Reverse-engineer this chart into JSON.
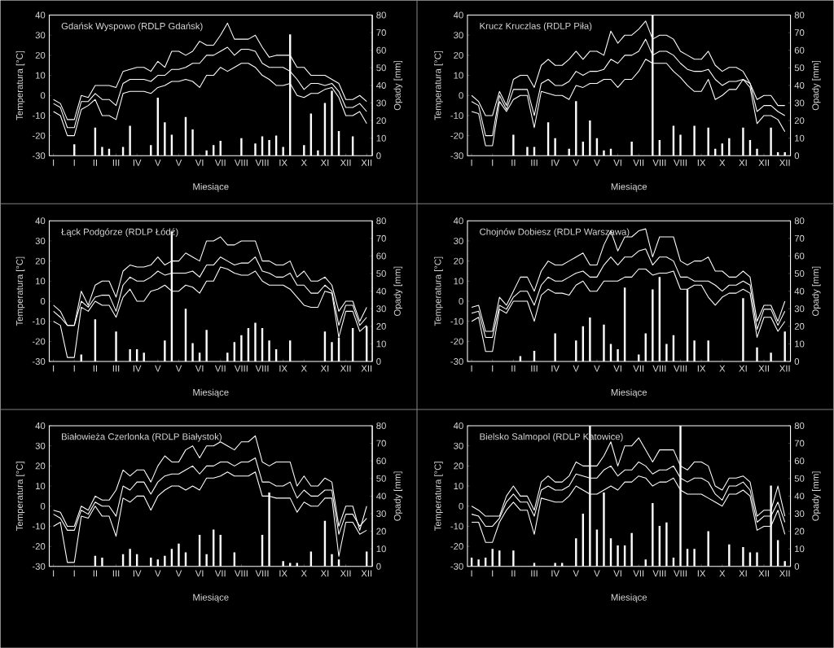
{
  "chart_data": [
    {
      "type": "line",
      "title": "Gdańsk Wyspowo (RDLP Gdańsk)",
      "xlabel": "Miesiące",
      "ylabel": "Temperatura [°C]",
      "y2label": "Opady [mm]",
      "categories": [
        "I",
        null,
        null,
        "I",
        null,
        null,
        "II",
        null,
        null,
        "III",
        null,
        null,
        "IV",
        null,
        null,
        "V",
        null,
        null,
        "V",
        null,
        null,
        "VI",
        null,
        null,
        "VII",
        null,
        null,
        "VIII",
        null,
        null,
        "VIII",
        null,
        null,
        "IX",
        null,
        null,
        "X",
        null,
        null,
        "XI",
        null,
        null,
        "XII",
        null,
        null,
        "XII"
      ],
      "ylim": [
        -30,
        40
      ],
      "yticks": [
        -30,
        -20,
        -10,
        0,
        10,
        20,
        30,
        40
      ],
      "y2lim": [
        0,
        80
      ],
      "y2ticks": [
        0,
        10,
        20,
        30,
        40,
        50,
        60,
        70,
        80
      ],
      "series": [
        {
          "color": "#ffffff",
          "values": [
            -2,
            -4,
            -12,
            -12,
            0,
            -1,
            5,
            5,
            5,
            4,
            12,
            13,
            14,
            14,
            12,
            17,
            14,
            22,
            22,
            20,
            22,
            27,
            25,
            25,
            30,
            36,
            28,
            28,
            28,
            30,
            24,
            19,
            20,
            20,
            20,
            14,
            14,
            10,
            10,
            10,
            8,
            6,
            -2,
            -2,
            0,
            -3
          ]
        },
        {
          "color": "#ffffff",
          "values": [
            -4,
            -6,
            -16,
            -16,
            -3,
            -3,
            1,
            -2,
            -2,
            -5,
            6,
            8,
            8,
            8,
            7,
            10,
            10,
            13,
            13,
            14,
            16,
            16,
            20,
            20,
            22,
            24,
            20,
            23,
            23,
            22,
            16,
            14,
            14,
            14,
            12,
            8,
            3,
            6,
            6,
            5,
            6,
            2,
            -6,
            -6,
            -4,
            -8
          ]
        },
        {
          "color": "#ffffff",
          "values": [
            -8,
            -10,
            -20,
            -20,
            -7,
            -5,
            -2,
            -10,
            -10,
            -12,
            1,
            2,
            2,
            2,
            1,
            4,
            5,
            7,
            7,
            8,
            7,
            4,
            10,
            10,
            14,
            12,
            14,
            16,
            16,
            14,
            10,
            8,
            5,
            5,
            6,
            0,
            -1,
            1,
            1,
            3,
            4,
            -1,
            -10,
            -10,
            -8,
            -14
          ]
        },
        {
          "type": "bar",
          "axis": "y2",
          "color": "#ffffff",
          "values": [
            0,
            0,
            0,
            6.5,
            0,
            0,
            16,
            5,
            4,
            0,
            5,
            17,
            0,
            0,
            6,
            33,
            19,
            12,
            0,
            22,
            15,
            0,
            3,
            6,
            8.5,
            0,
            0,
            10,
            0,
            7,
            11,
            9,
            11.5,
            5,
            69,
            0,
            6,
            24,
            3,
            30,
            37,
            14,
            0,
            11,
            0,
            0
          ]
        }
      ]
    },
    {
      "type": "line",
      "title": "Krucz Kruczlas (RDLP Piła)",
      "xlabel": "Miesiące",
      "ylabel": "Temperatura [°C]",
      "y2label": "Opady [mm]",
      "categories": [
        "I",
        null,
        null,
        "I",
        null,
        null,
        "II",
        null,
        null,
        "III",
        null,
        null,
        "IV",
        null,
        null,
        "V",
        null,
        null,
        "V",
        null,
        null,
        "VI",
        null,
        null,
        "VII",
        null,
        null,
        "VIII",
        null,
        null,
        "VIII",
        null,
        null,
        "IX",
        null,
        null,
        "X",
        null,
        null,
        "XI",
        null,
        null,
        "XII",
        null,
        null,
        "XII"
      ],
      "ylim": [
        -30,
        40
      ],
      "yticks": [
        -30,
        -20,
        -10,
        0,
        10,
        20,
        30,
        40
      ],
      "y2lim": [
        0,
        80
      ],
      "y2ticks": [
        0,
        10,
        20,
        30,
        40,
        50,
        60,
        70,
        80
      ],
      "series": [
        {
          "color": "#ffffff",
          "values": [
            0,
            -3,
            -10,
            -10,
            2,
            -5,
            8,
            10,
            10,
            4,
            15,
            18,
            15,
            15,
            18,
            22,
            18,
            22,
            22,
            20,
            32,
            26,
            30,
            30,
            33,
            37,
            28,
            30,
            30,
            28,
            22,
            20,
            18,
            18,
            22,
            15,
            12,
            14,
            14,
            12,
            6,
            -2,
            0,
            0,
            -5,
            -5
          ]
        },
        {
          "color": "#ffffff",
          "values": [
            -3,
            -5,
            -20,
            -20,
            0,
            -7,
            3,
            3,
            3,
            -10,
            6,
            8,
            5,
            5,
            7,
            12,
            10,
            12,
            12,
            13,
            18,
            16,
            20,
            20,
            22,
            28,
            20,
            22,
            22,
            20,
            16,
            13,
            12,
            12,
            13,
            8,
            5,
            7,
            7,
            8,
            6,
            -8,
            -5,
            -5,
            -8,
            -10
          ]
        },
        {
          "color": "#ffffff",
          "values": [
            -8,
            -9,
            -25,
            -25,
            -3,
            -8,
            -2,
            0,
            0,
            -16,
            2,
            1,
            0,
            0,
            -2,
            5,
            4,
            6,
            6,
            8,
            8,
            4,
            8,
            8,
            12,
            18,
            16,
            16,
            16,
            12,
            9,
            5,
            2,
            2,
            8,
            -2,
            0,
            3,
            3,
            8,
            4,
            -14,
            -10,
            -10,
            -12,
            -18
          ]
        },
        {
          "type": "bar",
          "axis": "y2",
          "color": "#ffffff",
          "values": [
            0,
            0,
            0,
            0,
            0,
            0,
            12,
            0,
            5,
            5,
            0,
            19,
            10,
            0,
            4,
            31,
            8,
            20,
            10,
            3,
            4,
            0,
            0,
            8,
            0,
            0,
            80,
            9,
            0,
            17,
            12,
            0,
            17,
            0,
            16,
            4,
            7,
            10,
            0,
            16,
            9,
            4,
            0,
            16,
            2,
            2
          ]
        }
      ]
    },
    {
      "type": "line",
      "title": "Łąck Podgórze (RDLP Łódź)",
      "xlabel": "Miesiące",
      "ylabel": "Temperatura [°C]",
      "y2label": "Opady [mm]",
      "categories": [
        "I",
        null,
        null,
        "I",
        null,
        null,
        "II",
        null,
        null,
        "III",
        null,
        null,
        "IV",
        null,
        null,
        "V",
        null,
        null,
        "V",
        null,
        null,
        "VI",
        null,
        null,
        "VII",
        null,
        null,
        "VIII",
        null,
        null,
        "VIII",
        null,
        null,
        "IX",
        null,
        null,
        "X",
        null,
        null,
        "XI",
        null,
        null,
        "XII",
        null,
        null,
        "XII"
      ],
      "ylim": [
        -30,
        40
      ],
      "yticks": [
        -30,
        -20,
        -10,
        0,
        10,
        20,
        30,
        40
      ],
      "y2lim": [
        0,
        80
      ],
      "y2ticks": [
        0,
        10,
        20,
        30,
        40,
        50,
        60,
        70,
        80
      ],
      "series": [
        {
          "color": "#ffffff",
          "values": [
            -2,
            -5,
            -12,
            -12,
            5,
            -2,
            8,
            10,
            10,
            2,
            15,
            18,
            17,
            17,
            18,
            22,
            18,
            20,
            20,
            24,
            22,
            20,
            30,
            30,
            32,
            28,
            28,
            30,
            30,
            30,
            20,
            20,
            18,
            18,
            20,
            12,
            15,
            10,
            10,
            12,
            8,
            -5,
            0,
            0,
            -10,
            -3
          ]
        },
        {
          "color": "#ffffff",
          "values": [
            -5,
            -8,
            -12,
            -12,
            0,
            -3,
            2,
            3,
            3,
            -5,
            8,
            12,
            10,
            10,
            12,
            15,
            13,
            14,
            14,
            14,
            15,
            12,
            18,
            18,
            22,
            20,
            18,
            19,
            19,
            22,
            15,
            14,
            12,
            12,
            14,
            8,
            8,
            4,
            4,
            8,
            5,
            -12,
            -2,
            -2,
            -12,
            -8
          ]
        },
        {
          "color": "#ffffff",
          "values": [
            -10,
            -12,
            -28,
            -28,
            -3,
            -5,
            0,
            -2,
            -2,
            -8,
            2,
            6,
            0,
            0,
            5,
            6,
            8,
            5,
            5,
            8,
            7,
            4,
            10,
            10,
            17,
            16,
            14,
            13,
            13,
            15,
            10,
            8,
            8,
            8,
            6,
            2,
            -2,
            -3,
            -3,
            5,
            4,
            -18,
            -5,
            -5,
            -15,
            -12
          ]
        },
        {
          "type": "bar",
          "axis": "y2",
          "color": "#ffffff",
          "values": [
            0,
            0,
            0,
            0,
            4,
            0,
            24,
            0,
            0,
            17,
            0,
            7,
            7,
            5,
            0,
            0,
            12,
            74,
            0,
            30,
            10.5,
            5,
            18,
            0,
            0,
            5,
            11,
            15,
            19,
            22,
            19,
            12,
            7,
            0,
            12,
            0,
            0,
            0,
            0,
            17,
            11,
            13.5,
            0,
            19,
            0,
            20
          ]
        }
      ]
    },
    {
      "type": "line",
      "title": "Chojnów Dobiesz (RDLP Warszawa)",
      "xlabel": "Miesiące",
      "ylabel": "Temperatura [°C]",
      "y2label": "Opady [mm]",
      "categories": [
        "I",
        null,
        null,
        "I",
        null,
        null,
        "II",
        null,
        null,
        "III",
        null,
        null,
        "IV",
        null,
        null,
        "V",
        null,
        null,
        "V",
        null,
        null,
        "VI",
        null,
        null,
        "VII",
        null,
        null,
        "VIII",
        null,
        null,
        "VIII",
        null,
        null,
        "IX",
        null,
        null,
        "X",
        null,
        null,
        "XI",
        null,
        null,
        "XII",
        null,
        null,
        "XII"
      ],
      "ylim": [
        -30,
        40
      ],
      "yticks": [
        -30,
        -20,
        -10,
        0,
        10,
        20,
        30,
        40
      ],
      "y2lim": [
        0,
        80
      ],
      "y2ticks": [
        0,
        10,
        20,
        30,
        40,
        50,
        60,
        70,
        80
      ],
      "series": [
        {
          "color": "#ffffff",
          "values": [
            -3,
            -2,
            -15,
            -15,
            2,
            -2,
            5,
            12,
            12,
            5,
            15,
            20,
            18,
            18,
            20,
            22,
            24,
            18,
            18,
            28,
            35,
            25,
            32,
            32,
            35,
            36,
            22,
            32,
            32,
            32,
            20,
            18,
            20,
            20,
            22,
            15,
            15,
            12,
            12,
            15,
            12,
            -10,
            -2,
            -2,
            -10,
            0
          ]
        },
        {
          "color": "#ffffff",
          "values": [
            -6,
            -5,
            -18,
            -18,
            -2,
            -4,
            2,
            5,
            5,
            -2,
            8,
            12,
            10,
            10,
            12,
            14,
            15,
            12,
            12,
            18,
            22,
            18,
            22,
            22,
            25,
            26,
            18,
            22,
            22,
            20,
            12,
            12,
            10,
            10,
            10,
            8,
            5,
            8,
            8,
            10,
            8,
            -14,
            -4,
            -4,
            -12,
            -5
          ]
        },
        {
          "color": "#ffffff",
          "values": [
            -10,
            -8,
            -25,
            -25,
            -4,
            -6,
            0,
            0,
            0,
            -10,
            3,
            6,
            4,
            4,
            3,
            8,
            10,
            5,
            5,
            10,
            10,
            10,
            12,
            12,
            16,
            16,
            13,
            14,
            14,
            15,
            6,
            6,
            8,
            8,
            2,
            -2,
            2,
            4,
            4,
            6,
            4,
            -18,
            -8,
            -8,
            -15,
            -10
          ]
        },
        {
          "type": "bar",
          "axis": "y2",
          "color": "#ffffff",
          "values": [
            0,
            0,
            0,
            0,
            0,
            0,
            0,
            3,
            0,
            6,
            0,
            0,
            16,
            0,
            0,
            12,
            20,
            25,
            0,
            21,
            10,
            7,
            42,
            0,
            4,
            16,
            41,
            48,
            10,
            15,
            0,
            41,
            12,
            0,
            12,
            0,
            0,
            0,
            0,
            36,
            0,
            8,
            0,
            5,
            0,
            17
          ]
        }
      ]
    },
    {
      "type": "line",
      "title": "Białowieża Czerlonka (RDLP Białystok)",
      "xlabel": "Miesiące",
      "ylabel": "Temperatura [°C]",
      "y2label": "Opady [mm]",
      "categories": [
        "I",
        null,
        null,
        "I",
        null,
        null,
        "II",
        null,
        null,
        "III",
        null,
        null,
        "IV",
        null,
        null,
        "V",
        null,
        null,
        "V",
        null,
        null,
        "VI",
        null,
        null,
        "VII",
        null,
        null,
        "VIII",
        null,
        null,
        "VIII",
        null,
        null,
        "IX",
        null,
        null,
        "X",
        null,
        null,
        "XI",
        null,
        null,
        "XII",
        null,
        null,
        "XII"
      ],
      "ylim": [
        -30,
        40
      ],
      "yticks": [
        -30,
        -20,
        -10,
        0,
        10,
        20,
        30,
        40
      ],
      "y2lim": [
        0,
        80
      ],
      "y2ticks": [
        0,
        10,
        20,
        30,
        40,
        50,
        60,
        70,
        80
      ],
      "series": [
        {
          "color": "#ffffff",
          "values": [
            -2,
            -3,
            -10,
            -10,
            0,
            -2,
            5,
            3,
            3,
            8,
            18,
            15,
            18,
            18,
            12,
            20,
            25,
            22,
            22,
            28,
            30,
            24,
            30,
            30,
            32,
            30,
            28,
            32,
            32,
            35,
            22,
            20,
            22,
            22,
            22,
            10,
            15,
            10,
            10,
            14,
            12,
            -10,
            0,
            0,
            -12,
            0
          ]
        },
        {
          "color": "#ffffff",
          "values": [
            -4,
            -6,
            -12,
            -12,
            -2,
            -4,
            2,
            0,
            0,
            -5,
            10,
            8,
            12,
            12,
            6,
            12,
            15,
            16,
            16,
            18,
            20,
            16,
            20,
            20,
            22,
            22,
            20,
            22,
            22,
            24,
            12,
            12,
            10,
            10,
            12,
            4,
            8,
            5,
            5,
            8,
            8,
            -14,
            -4,
            -4,
            -10,
            -6
          ]
        },
        {
          "color": "#ffffff",
          "values": [
            -10,
            -8,
            -28,
            -28,
            -5,
            -6,
            0,
            -5,
            -5,
            -15,
            4,
            2,
            5,
            5,
            -2,
            5,
            8,
            10,
            10,
            8,
            10,
            8,
            14,
            14,
            15,
            17,
            15,
            15,
            15,
            17,
            5,
            5,
            4,
            4,
            4,
            -3,
            2,
            0,
            0,
            4,
            4,
            -25,
            -8,
            -8,
            -14,
            -12
          ]
        },
        {
          "type": "bar",
          "axis": "y2",
          "color": "#ffffff",
          "values": [
            0,
            0,
            0,
            0,
            0,
            0,
            6,
            5,
            0,
            0,
            7,
            10,
            7,
            0,
            5,
            4,
            6,
            10,
            13,
            8,
            0,
            18,
            7,
            21,
            18,
            0,
            8,
            0,
            0,
            0,
            18,
            42,
            0,
            3,
            2,
            2,
            0,
            8.5,
            0,
            26,
            7,
            4,
            0,
            0,
            0,
            8.5
          ]
        }
      ]
    },
    {
      "type": "line",
      "title": "Bielsko Salmopol (RDLP Katowice)",
      "xlabel": "Miesiące",
      "ylabel": "Temperatura [°C]",
      "y2label": "Opady [mm]",
      "categories": [
        "I",
        null,
        null,
        "I",
        null,
        null,
        "II",
        null,
        null,
        "III",
        null,
        null,
        "IV",
        null,
        null,
        "V",
        null,
        null,
        "V",
        null,
        null,
        "VI",
        null,
        null,
        "VII",
        null,
        null,
        "VIII",
        null,
        null,
        "VIII",
        null,
        null,
        "IX",
        null,
        null,
        "X",
        null,
        null,
        "XI",
        null,
        null,
        "XII",
        null,
        null,
        "XII"
      ],
      "ylim": [
        -30,
        40
      ],
      "yticks": [
        -30,
        -20,
        -10,
        0,
        10,
        20,
        30,
        40
      ],
      "y2lim": [
        0,
        80
      ],
      "y2ticks": [
        0,
        10,
        20,
        30,
        40,
        50,
        60,
        70,
        80
      ],
      "series": [
        {
          "color": "#ffffff",
          "values": [
            0,
            -2,
            -5,
            -5,
            -5,
            5,
            10,
            5,
            5,
            -2,
            12,
            15,
            12,
            12,
            15,
            22,
            20,
            20,
            20,
            25,
            32,
            20,
            30,
            30,
            34,
            28,
            22,
            28,
            28,
            28,
            20,
            18,
            22,
            22,
            20,
            10,
            8,
            14,
            14,
            15,
            12,
            -5,
            -2,
            -2,
            10,
            -5
          ]
        },
        {
          "color": "#ffffff",
          "values": [
            -4,
            -5,
            -10,
            -10,
            -6,
            2,
            6,
            2,
            2,
            -5,
            8,
            10,
            8,
            8,
            10,
            16,
            15,
            14,
            14,
            18,
            20,
            15,
            18,
            18,
            22,
            20,
            16,
            18,
            18,
            20,
            14,
            12,
            14,
            14,
            12,
            6,
            3,
            10,
            10,
            12,
            8,
            -8,
            -5,
            -5,
            2,
            -8
          ]
        },
        {
          "color": "#ffffff",
          "values": [
            -8,
            -8,
            -18,
            -18,
            -8,
            -2,
            2,
            -2,
            -2,
            -14,
            4,
            3,
            2,
            2,
            5,
            10,
            8,
            6,
            6,
            8,
            10,
            8,
            12,
            12,
            15,
            14,
            10,
            12,
            12,
            14,
            8,
            6,
            6,
            6,
            4,
            2,
            0,
            6,
            6,
            8,
            5,
            -12,
            -10,
            -10,
            -2,
            -14
          ]
        },
        {
          "type": "bar",
          "axis": "y2",
          "color": "#ffffff",
          "values": [
            5,
            4,
            5,
            10,
            9,
            0,
            9,
            0,
            0,
            2,
            0,
            0,
            2,
            2,
            0,
            16,
            30,
            80,
            21,
            42,
            16,
            12,
            12,
            19,
            0,
            4,
            36,
            23,
            25,
            5,
            80,
            10,
            10,
            0,
            20,
            0,
            0,
            12.5,
            0,
            11,
            8,
            8,
            0,
            46,
            15,
            3
          ]
        }
      ]
    }
  ]
}
